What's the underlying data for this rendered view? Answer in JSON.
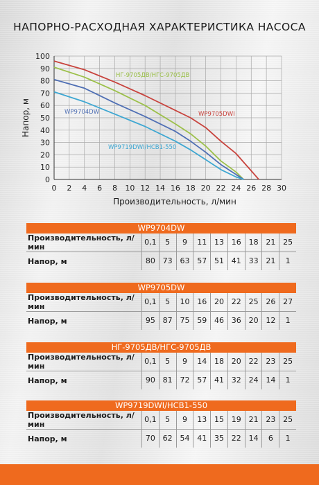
{
  "header": {
    "title": "НАПОРНО-РАСХОДНАЯ ХАРАКТЕРИСТИКА НАСОСА"
  },
  "chart_data": {
    "type": "line",
    "xlabel": "Производительность, л/мин",
    "ylabel": "Напор, м",
    "xlim": [
      0,
      30
    ],
    "ylim": [
      0,
      100
    ],
    "x_ticks": [
      0,
      2,
      4,
      6,
      8,
      10,
      12,
      14,
      16,
      18,
      20,
      22,
      24,
      26,
      28,
      30
    ],
    "y_ticks": [
      0,
      10,
      20,
      30,
      40,
      50,
      60,
      70,
      80,
      90,
      100
    ],
    "grid": true,
    "series": [
      {
        "name": "WP9705DWI",
        "color": "#c8433d",
        "x": [
          0,
          4,
          8,
          12,
          16,
          18,
          20,
          22,
          24,
          25,
          26,
          27
        ],
        "y": [
          96,
          89,
          79,
          68,
          56,
          50,
          42,
          31,
          21,
          14,
          7,
          0
        ]
      },
      {
        "name": "НГ-9705ДВ/НГС-9705ДВ",
        "color": "#9cc04a",
        "x": [
          0,
          4,
          8,
          12,
          16,
          18,
          20,
          22,
          24,
          25
        ],
        "y": [
          91,
          83,
          72,
          60,
          45,
          37,
          27,
          15,
          6,
          0
        ]
      },
      {
        "name": "WP9704DW",
        "color": "#4f6fb4",
        "x": [
          0,
          4,
          8,
          12,
          16,
          18,
          20,
          22,
          24,
          25
        ],
        "y": [
          81,
          74,
          62,
          51,
          39,
          31,
          22,
          12,
          4,
          0
        ]
      },
      {
        "name": "WP9719DWI/НСВ1-550",
        "color": "#3ea7d2",
        "x": [
          0,
          4,
          8,
          12,
          16,
          18,
          20,
          22,
          24,
          25
        ],
        "y": [
          71,
          63,
          53,
          43,
          31,
          24,
          16,
          8,
          2,
          0
        ]
      }
    ]
  },
  "tables": [
    {
      "title": "WP9704DW",
      "flow_label": "Производительность, л/мин",
      "head_label": "Напор, м",
      "flow": [
        "0,1",
        "5",
        "9",
        "11",
        "13",
        "16",
        "18",
        "21",
        "25"
      ],
      "head": [
        "80",
        "73",
        "63",
        "57",
        "51",
        "41",
        "33",
        "21",
        "1"
      ]
    },
    {
      "title": "WP9705DW",
      "flow_label": "Производительность, л/мин",
      "head_label": "Напор, м",
      "flow": [
        "0,1",
        "5",
        "10",
        "16",
        "20",
        "22",
        "25",
        "26",
        "27"
      ],
      "head": [
        "95",
        "87",
        "75",
        "59",
        "46",
        "36",
        "20",
        "12",
        "1"
      ]
    },
    {
      "title": "НГ-9705ДВ/НГС-9705ДВ",
      "flow_label": "Производительность, л/мин",
      "head_label": "Напор, м",
      "flow": [
        "0,1",
        "5",
        "9",
        "14",
        "18",
        "20",
        "22",
        "23",
        "25"
      ],
      "head": [
        "90",
        "81",
        "72",
        "57",
        "41",
        "32",
        "24",
        "14",
        "1"
      ]
    },
    {
      "title": "WP9719DWI/НСВ1-550",
      "flow_label": "Производительность, л/мин",
      "head_label": "Напор, м",
      "flow": [
        "0,1",
        "5",
        "9",
        "13",
        "15",
        "19",
        "21",
        "23",
        "25"
      ],
      "head": [
        "70",
        "62",
        "54",
        "41",
        "35",
        "22",
        "14",
        "6",
        "1"
      ]
    }
  ],
  "colors": {
    "accent": "#ef6a1e",
    "grid": "#a9a9a9"
  }
}
